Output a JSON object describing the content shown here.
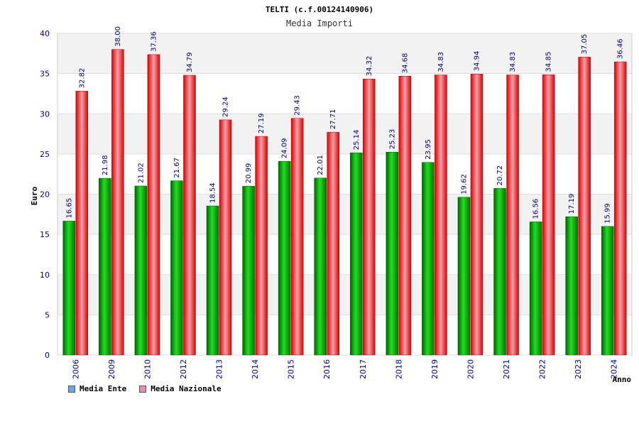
{
  "colors": {
    "ente": "#00bb00",
    "nazionale": "#ee1111",
    "legend_ente": "#6aa6e6",
    "legend_nazionale": "#e68ab0"
  },
  "chart_data": {
    "type": "bar",
    "title": "TELTI (c.f.00124140906)",
    "subtitle": "Media Importi",
    "xlabel": "Anno",
    "ylabel": "Euro",
    "ylim": [
      0,
      40
    ],
    "yticks": [
      0,
      5,
      10,
      15,
      20,
      25,
      30,
      35,
      40
    ],
    "categories": [
      "2006",
      "2009",
      "2010",
      "2012",
      "2013",
      "2014",
      "2015",
      "2016",
      "2017",
      "2018",
      "2019",
      "2020",
      "2021",
      "2022",
      "2023",
      "2024"
    ],
    "series": [
      {
        "name": "Media Ente",
        "values": [
          16.65,
          21.98,
          21.02,
          21.67,
          18.54,
          20.99,
          24.09,
          22.01,
          25.14,
          25.23,
          23.95,
          19.62,
          20.72,
          16.56,
          17.19,
          15.99
        ],
        "labels": [
          "16.65",
          "21.98",
          "21.02",
          "21.67",
          "18.54",
          "20.99",
          "24.09",
          "22.01",
          "25.14",
          "25.23",
          "23.95",
          "19.62",
          "20.72",
          "16.56",
          "17.19",
          "15.99"
        ]
      },
      {
        "name": "Media Nazionale",
        "values": [
          32.82,
          38.0,
          37.36,
          34.79,
          29.24,
          27.19,
          29.43,
          27.71,
          34.32,
          34.68,
          34.83,
          34.94,
          34.83,
          34.85,
          37.05,
          36.46
        ],
        "labels": [
          "32.82",
          "38.00",
          "37.36",
          "34.79",
          "29.24",
          "27.19",
          "29.43",
          "27.71",
          "34.32",
          "34.68",
          "34.83",
          "34.94",
          "34.83",
          "34.85",
          "37.05",
          "36.46"
        ]
      }
    ]
  }
}
